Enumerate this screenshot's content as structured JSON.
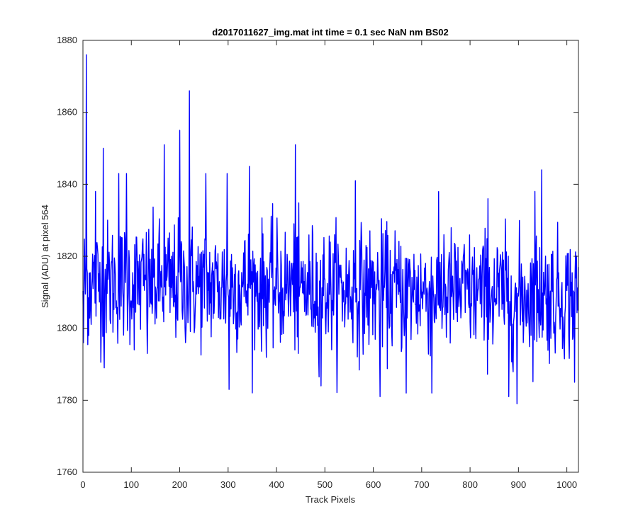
{
  "chart_data": {
    "type": "line",
    "title": "d2017011627_img.mat int time = 0.1 sec  NaN nm BS02",
    "xlabel": "Track Pixels",
    "ylabel": "Signal (ADU) at pixel 564",
    "xlim": [
      0,
      1024
    ],
    "ylim": [
      1760,
      1880
    ],
    "xticks": [
      0,
      100,
      200,
      300,
      400,
      500,
      600,
      700,
      800,
      900,
      1000
    ],
    "yticks": [
      1760,
      1780,
      1800,
      1820,
      1840,
      1860,
      1880
    ],
    "xtick_labels": [
      "0",
      "100",
      "200",
      "300",
      "400",
      "500",
      "600",
      "700",
      "800",
      "900",
      "1000"
    ],
    "ytick_labels": [
      "1760",
      "1780",
      "1800",
      "1820",
      "1840",
      "1860",
      "1880"
    ],
    "grid": false,
    "series": [
      {
        "color": "#0000ff",
        "n_points": 1024,
        "mean": 1811,
        "spikes": [
          {
            "x": 1,
            "y": 1796
          },
          {
            "x": 7,
            "y": 1876
          },
          {
            "x": 12,
            "y": 1798
          },
          {
            "x": 26,
            "y": 1838
          },
          {
            "x": 42,
            "y": 1850
          },
          {
            "x": 44,
            "y": 1789
          },
          {
            "x": 74,
            "y": 1843
          },
          {
            "x": 90,
            "y": 1843
          },
          {
            "x": 106,
            "y": 1794
          },
          {
            "x": 133,
            "y": 1793
          },
          {
            "x": 168,
            "y": 1851
          },
          {
            "x": 200,
            "y": 1855
          },
          {
            "x": 220,
            "y": 1866
          },
          {
            "x": 254,
            "y": 1843
          },
          {
            "x": 298,
            "y": 1843
          },
          {
            "x": 302,
            "y": 1783
          },
          {
            "x": 344,
            "y": 1845
          },
          {
            "x": 439,
            "y": 1851
          },
          {
            "x": 445,
            "y": 1793
          },
          {
            "x": 492,
            "y": 1784
          },
          {
            "x": 563,
            "y": 1841
          },
          {
            "x": 614,
            "y": 1781
          },
          {
            "x": 668,
            "y": 1782
          },
          {
            "x": 721,
            "y": 1782
          },
          {
            "x": 746,
            "y": 1826
          },
          {
            "x": 837,
            "y": 1836
          },
          {
            "x": 880,
            "y": 1781
          },
          {
            "x": 897,
            "y": 1779
          },
          {
            "x": 934,
            "y": 1838
          },
          {
            "x": 948,
            "y": 1844
          },
          {
            "x": 1016,
            "y": 1785
          },
          {
            "x": 1024,
            "y": 1817
          }
        ]
      }
    ]
  }
}
